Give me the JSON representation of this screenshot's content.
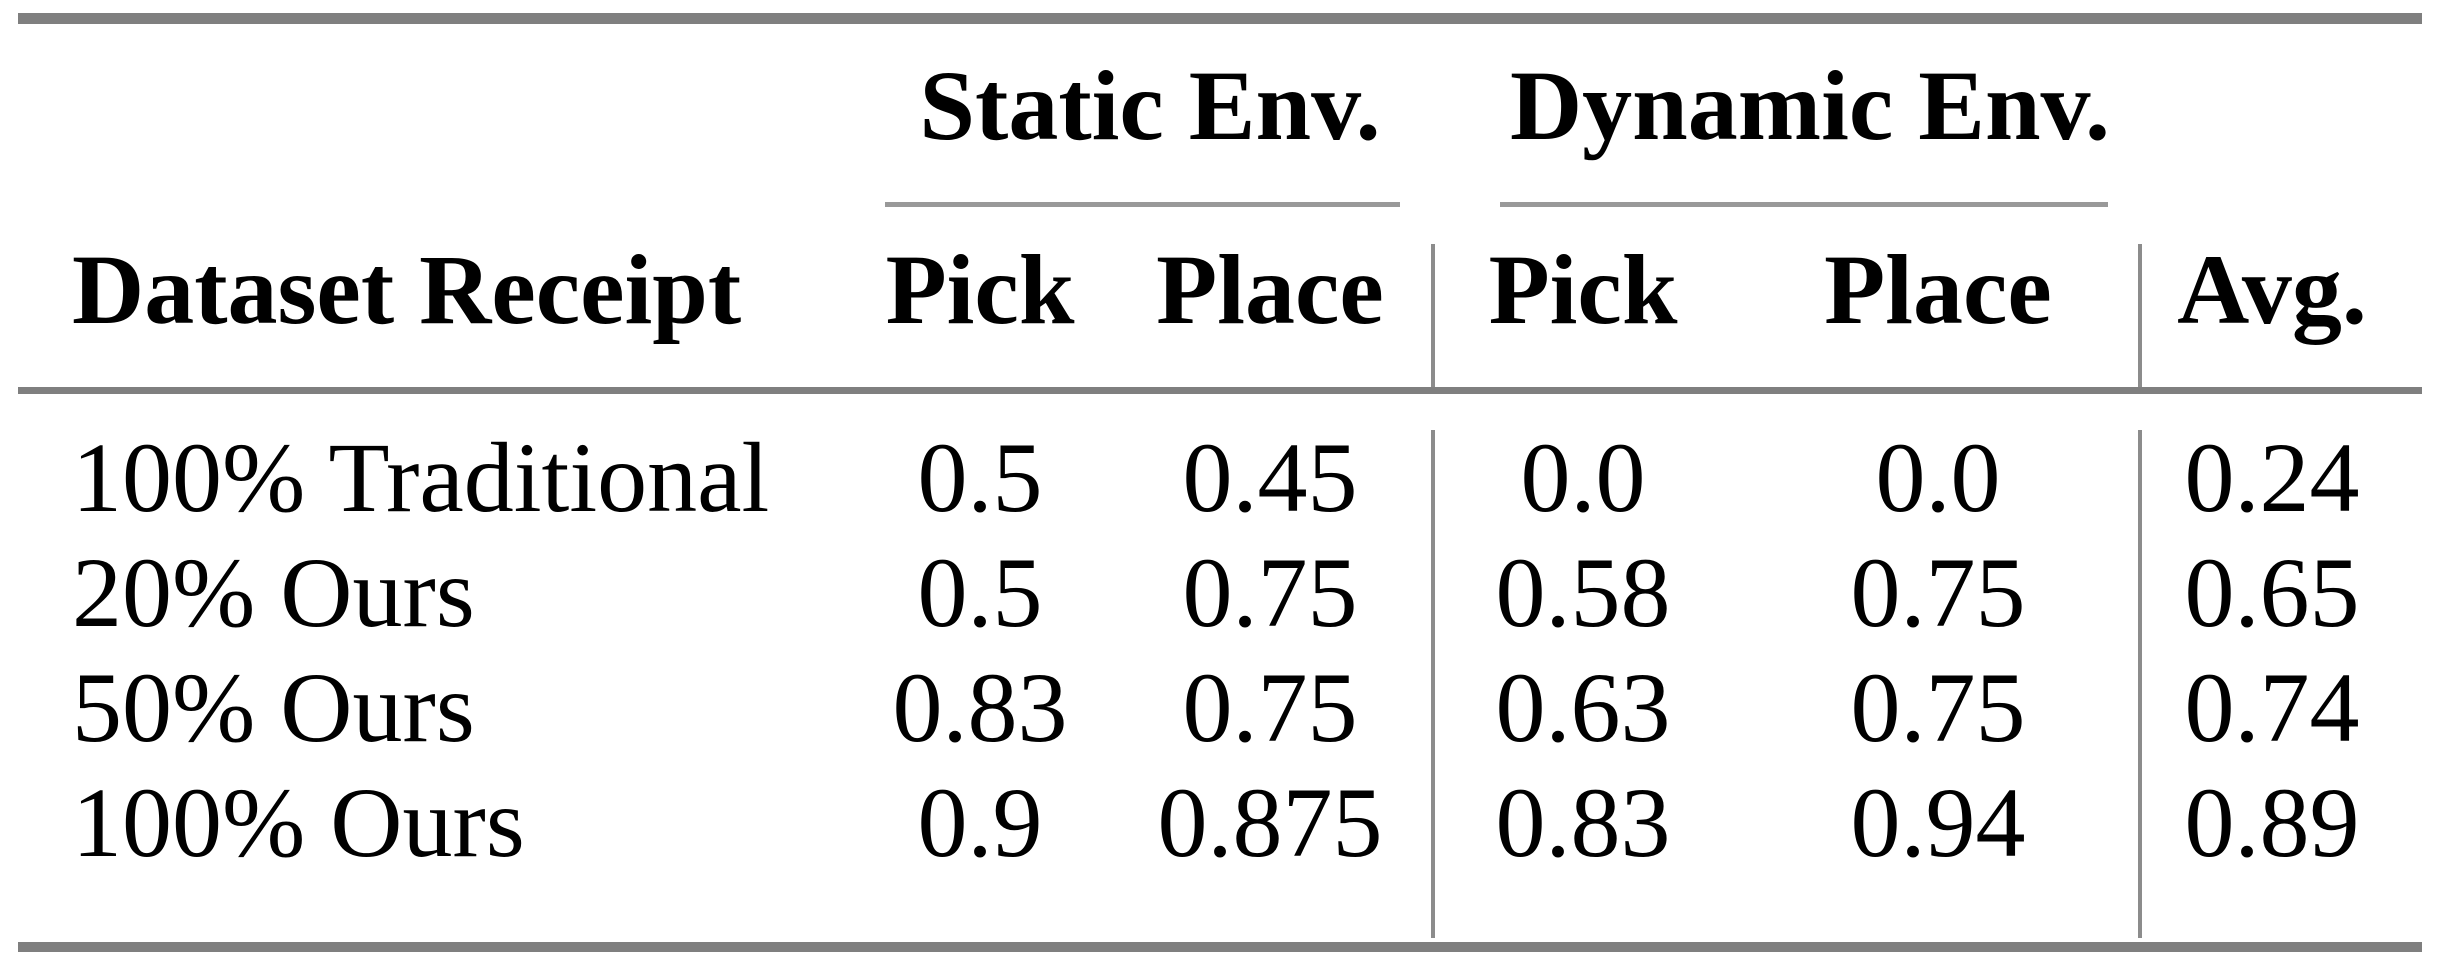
{
  "table": {
    "row_header_label": "Dataset Receipt",
    "groups": [
      {
        "label": "Static Env.",
        "columns": [
          "Pick",
          "Place"
        ]
      },
      {
        "label": "Dynamic Env.",
        "columns": [
          "Pick",
          "Place"
        ]
      }
    ],
    "avg_label": "Avg.",
    "rows": [
      {
        "label": "100% Traditional",
        "values": [
          "0.5",
          "0.45",
          "0.0",
          "0.0",
          "0.24"
        ]
      },
      {
        "label": "20% Ours",
        "values": [
          "0.5",
          "0.75",
          "0.58",
          "0.75",
          "0.65"
        ]
      },
      {
        "label": "50% Ours",
        "values": [
          "0.83",
          "0.75",
          "0.63",
          "0.75",
          "0.74"
        ]
      },
      {
        "label": "100% Ours",
        "values": [
          "0.9",
          "0.875",
          "0.83",
          "0.94",
          "0.89"
        ]
      }
    ]
  },
  "colors": {
    "rule": "#7f7f7f",
    "separator": "#8c8c8c",
    "text": "#000000",
    "background": "#ffffff"
  },
  "chart_data": {
    "type": "table",
    "columns": [
      "Dataset Receipt",
      "Static Env. Pick",
      "Static Env. Place",
      "Dynamic Env. Pick",
      "Dynamic Env. Place",
      "Avg."
    ],
    "rows": [
      [
        "100% Traditional",
        0.5,
        0.45,
        0.0,
        0.0,
        0.24
      ],
      [
        "20% Ours",
        0.5,
        0.75,
        0.58,
        0.75,
        0.65
      ],
      [
        "50% Ours",
        0.83,
        0.75,
        0.63,
        0.75,
        0.74
      ],
      [
        "100% Ours",
        0.9,
        0.875,
        0.83,
        0.94,
        0.89
      ]
    ]
  }
}
